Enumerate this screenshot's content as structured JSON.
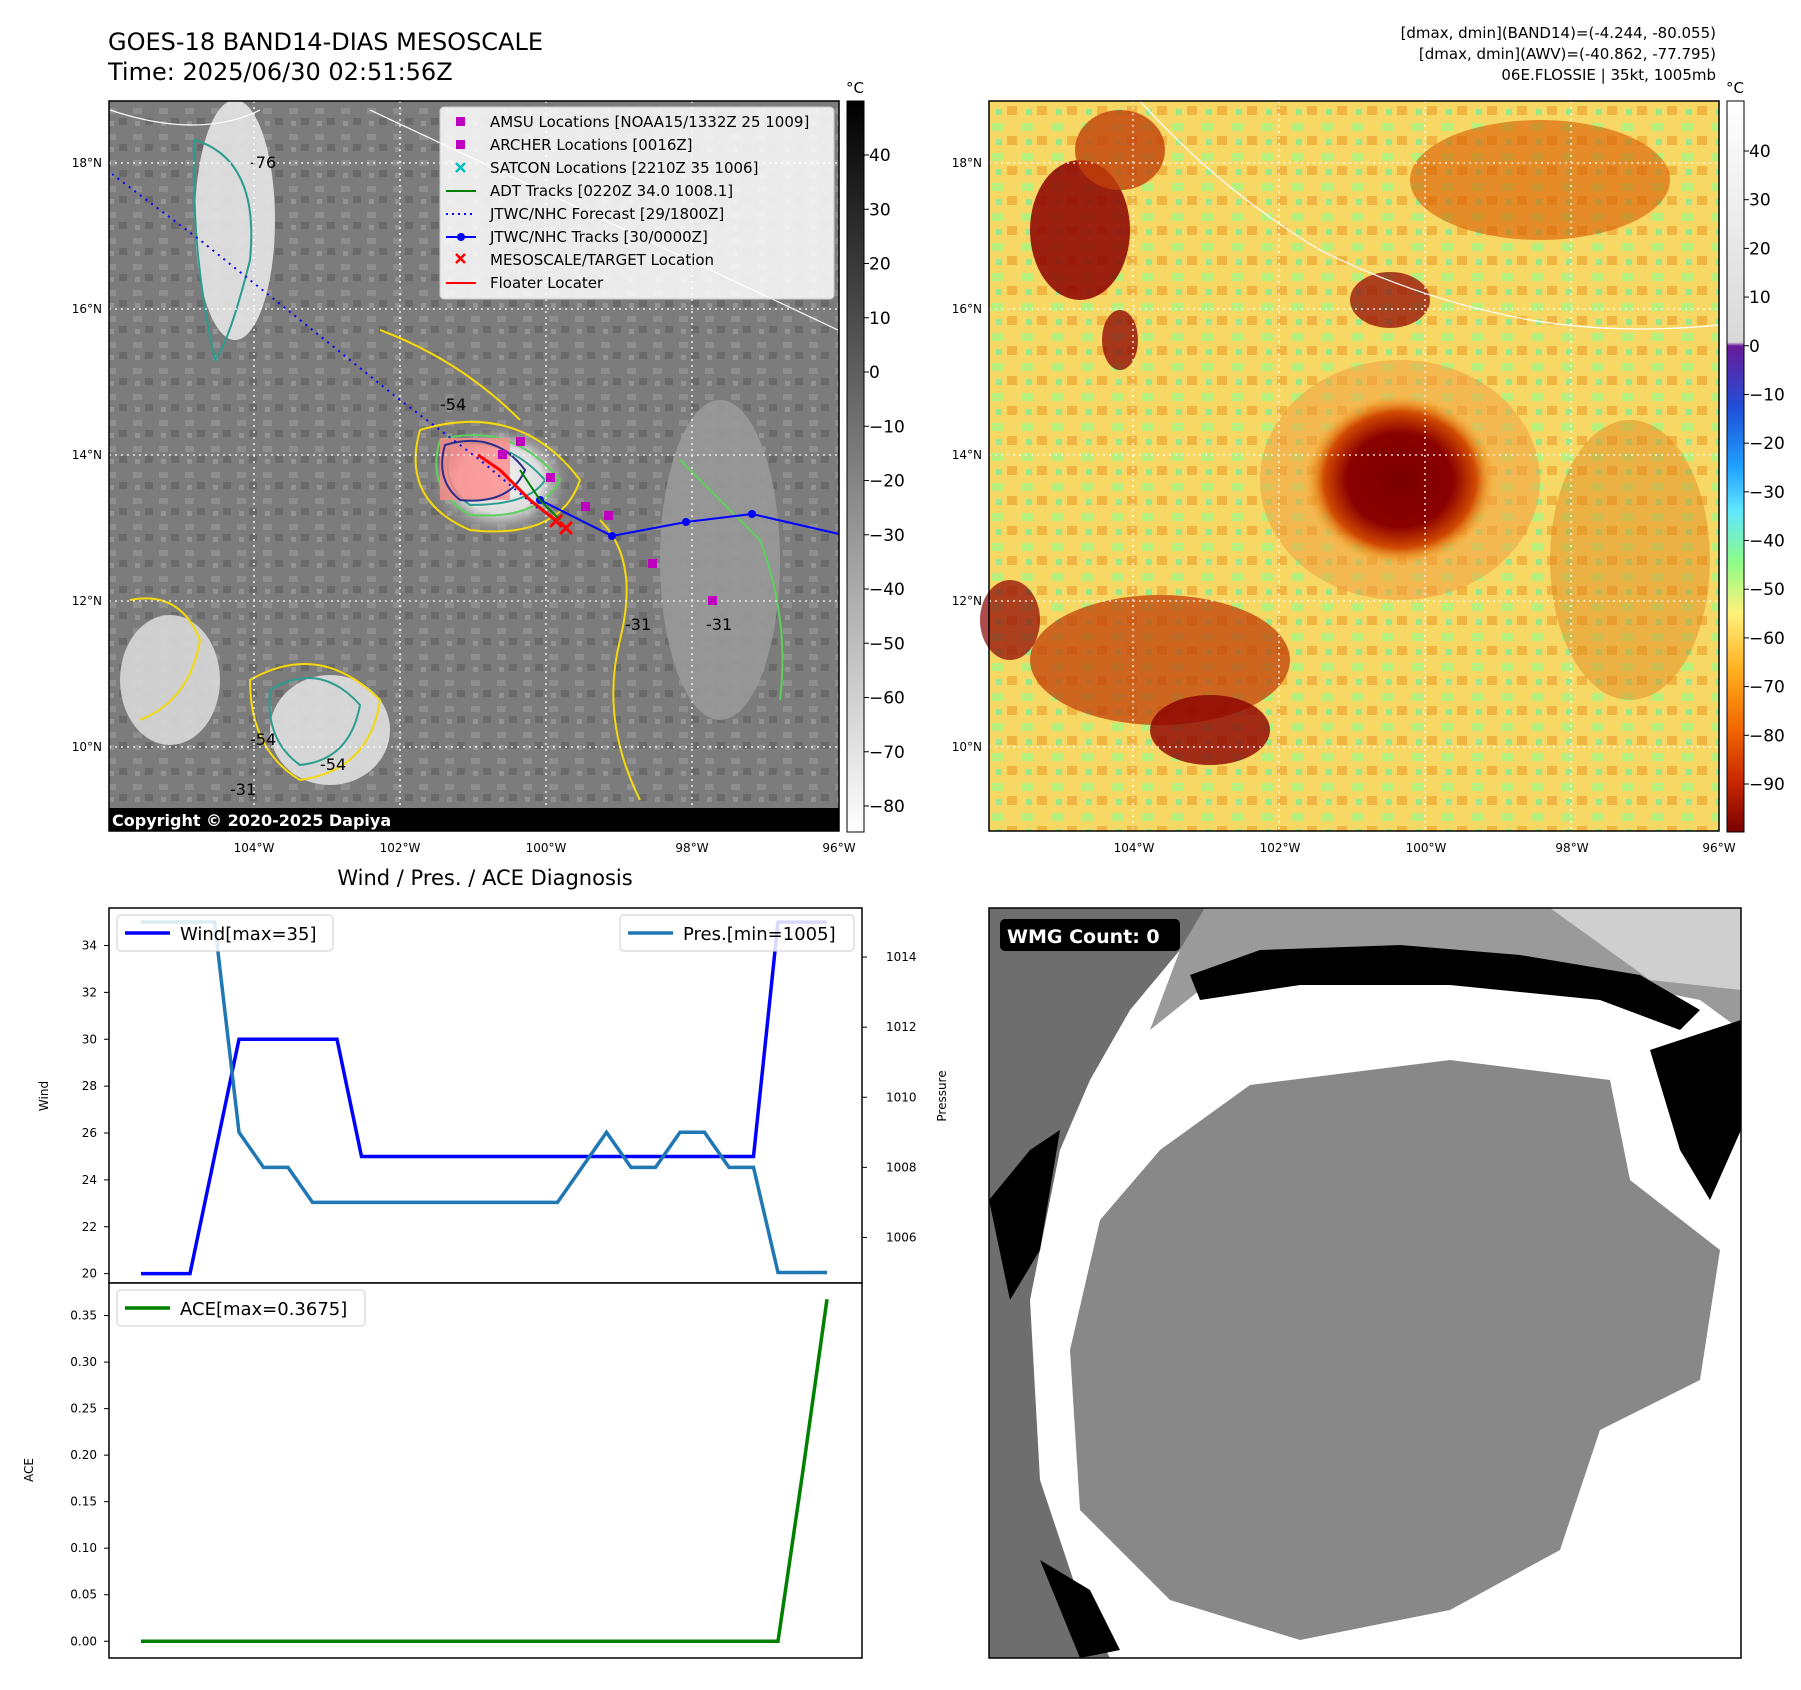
{
  "header": {
    "title_line1": "GOES-18 BAND14-DIAS MESOSCALE",
    "title_line2": "Time: 2025/06/30 02:51:56Z",
    "stats_line1": "[dmax, dmin](BAND14)=(-4.244, -80.055)",
    "stats_line2": "[dmax, dmin](AWV)=(-40.862, -77.795)",
    "stats_line3": "06E.FLOSSIE | 35kt, 1005mb"
  },
  "map_axes": {
    "lon_labels": [
      "104°W",
      "102°W",
      "100°W",
      "98°W",
      "96°W"
    ],
    "lat_labels": [
      "18°N",
      "16°N",
      "14°N",
      "12°N",
      "10°N"
    ]
  },
  "ir_map": {
    "copyright": "Copyright © 2020-2025 Dapiya",
    "contour_labels": [
      "-76",
      "-54",
      "-31",
      "-31",
      "-54",
      "-54",
      "-31"
    ],
    "legend": [
      {
        "label": "AMSU Locations [NOAA15/1332Z 25 1009]",
        "color": "#bf00bf",
        "marker": "square"
      },
      {
        "label": "ARCHER Locations [0016Z]",
        "color": "#bf00bf",
        "marker": "square"
      },
      {
        "label": "SATCON Locations [2210Z 35 1006]",
        "color": "#00bfbf",
        "marker": "x"
      },
      {
        "label": "ADT Tracks [0220Z 34.0 1008.1]",
        "color": "#008000",
        "marker": "line"
      },
      {
        "label": "JTWC/NHC Forecast [29/1800Z]",
        "color": "#0000ff",
        "marker": "dotted"
      },
      {
        "label": "JTWC/NHC Tracks [30/0000Z]",
        "color": "#0000ff",
        "marker": "line-dot"
      },
      {
        "label": "MESOSCALE/TARGET Location",
        "color": "#ff0000",
        "marker": "x"
      },
      {
        "label": "Floater Locater",
        "color": "#ff0000",
        "marker": "line"
      }
    ],
    "colorbar": {
      "unit": "°C",
      "ticks": [
        "40",
        "30",
        "20",
        "10",
        "0",
        "−10",
        "−20",
        "−30",
        "−40",
        "−50",
        "−60",
        "−70",
        "−80"
      ]
    }
  },
  "awv_map": {
    "colorbar": {
      "unit": "°C",
      "ticks": [
        "40",
        "30",
        "20",
        "10",
        "0",
        "−10",
        "−20",
        "−30",
        "−40",
        "−50",
        "−60",
        "−70",
        "−80",
        "−90"
      ]
    }
  },
  "wmg": {
    "label": "WMG Count: 0"
  },
  "chart_data": [
    {
      "type": "line",
      "title": "Wind / Pres. / ACE Diagnosis",
      "ylabel": "Wind",
      "y2label": "Pressure",
      "ylim": [
        19.6,
        35.6
      ],
      "y2lim": [
        1004.7,
        1015.4
      ],
      "yticks": [
        "20",
        "22",
        "24",
        "26",
        "28",
        "30",
        "32",
        "34"
      ],
      "y2ticks": [
        "1006",
        "1008",
        "1010",
        "1012",
        "1014"
      ],
      "series": [
        {
          "name": "Wind[max=35]",
          "color": "#0000ff",
          "axis": "left",
          "values": [
            20,
            20,
            20,
            25,
            30,
            30,
            30,
            30,
            30,
            25,
            25,
            25,
            25,
            25,
            25,
            25,
            25,
            25,
            25,
            25,
            25,
            25,
            25,
            25,
            25,
            25,
            35,
            35,
            35
          ]
        },
        {
          "name": "Pres.[min=1005]",
          "color": "#1f77b4",
          "axis": "right",
          "values": [
            1015,
            1015,
            1015,
            1015,
            1009,
            1008,
            1008,
            1007,
            1007,
            1007,
            1007,
            1007,
            1007,
            1007,
            1007,
            1007,
            1007,
            1007,
            1008,
            1009,
            1008,
            1008,
            1009,
            1009,
            1008,
            1008,
            1005,
            1005,
            1005
          ]
        }
      ],
      "legend_placement": [
        "upper-left",
        "upper-right"
      ]
    },
    {
      "type": "line",
      "ylabel": "ACE",
      "ylim": [
        -0.018,
        0.385
      ],
      "yticks": [
        "0.00",
        "0.05",
        "0.10",
        "0.15",
        "0.20",
        "0.25",
        "0.30",
        "0.35"
      ],
      "series": [
        {
          "name": "ACE[max=0.3675]",
          "color": "#008000",
          "values": [
            0,
            0,
            0,
            0,
            0,
            0,
            0,
            0,
            0,
            0,
            0,
            0,
            0,
            0,
            0,
            0,
            0,
            0,
            0,
            0,
            0,
            0,
            0,
            0,
            0,
            0,
            0,
            0.18,
            0.3675
          ]
        }
      ],
      "legend_placement": "upper-left"
    }
  ]
}
